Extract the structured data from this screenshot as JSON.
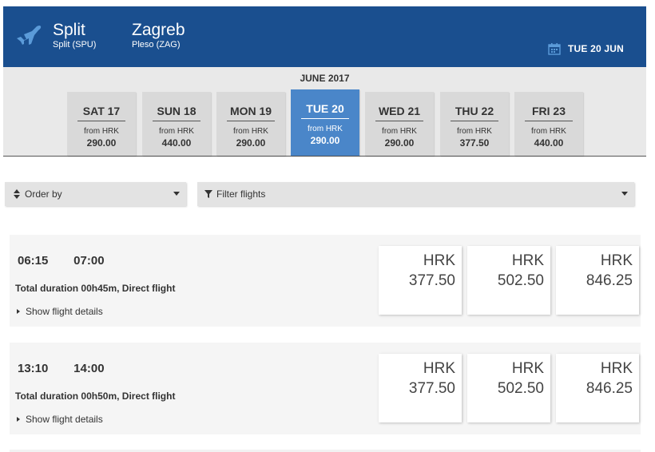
{
  "header": {
    "from_city": "Split",
    "from_code": "Split (SPU)",
    "to_city": "Zagreb",
    "to_code": "Pleso (ZAG)",
    "date": "TUE 20 JUN",
    "plane_icon": "airplane-icon",
    "calendar_icon": "calendar-icon",
    "bg_color": "#1a4f8f"
  },
  "date_strip": {
    "month": "JUNE 2017",
    "days": [
      {
        "day": "SAT 17",
        "from": "from HRK",
        "price": "290.00",
        "active": false
      },
      {
        "day": "SUN 18",
        "from": "from HRK",
        "price": "440.00",
        "active": false
      },
      {
        "day": "MON 19",
        "from": "from HRK",
        "price": "290.00",
        "active": false
      },
      {
        "day": "TUE 20",
        "from": "from HRK",
        "price": "290.00",
        "active": true
      },
      {
        "day": "WED 21",
        "from": "from HRK",
        "price": "290.00",
        "active": false
      },
      {
        "day": "THU 22",
        "from": "from HRK",
        "price": "377.50",
        "active": false
      },
      {
        "day": "FRI 23",
        "from": "from HRK",
        "price": "440.00",
        "active": false
      }
    ],
    "active_color": "#4a86c9"
  },
  "toolbar": {
    "order_label": "Order by",
    "filter_label": "Filter flights"
  },
  "flights": [
    {
      "departure": "06:15",
      "arrival": "07:00",
      "duration": "Total duration 00h45m, Direct flight",
      "details_label": "Show flight details",
      "fares": [
        {
          "currency": "HRK",
          "amount": "377.50"
        },
        {
          "currency": "HRK",
          "amount": "502.50"
        },
        {
          "currency": "HRK",
          "amount": "846.25"
        }
      ]
    },
    {
      "departure": "13:10",
      "arrival": "14:00",
      "duration": "Total duration 00h50m, Direct flight",
      "details_label": "Show flight details",
      "fares": [
        {
          "currency": "HRK",
          "amount": "377.50"
        },
        {
          "currency": "HRK",
          "amount": "502.50"
        },
        {
          "currency": "HRK",
          "amount": "846.25"
        }
      ]
    }
  ]
}
